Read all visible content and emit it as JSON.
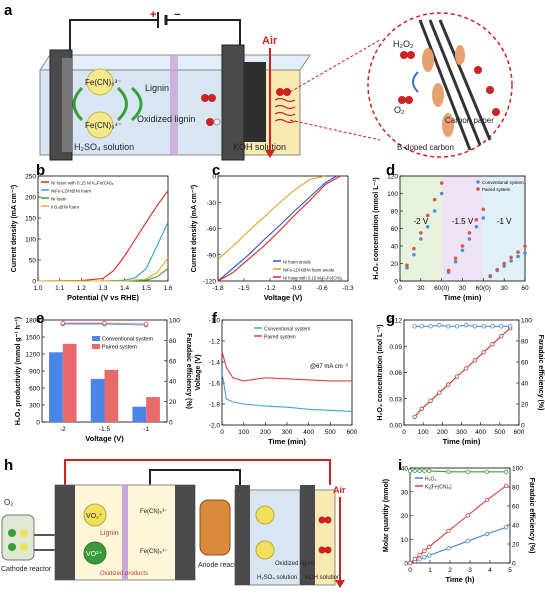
{
  "panel_labels": [
    "a",
    "b",
    "c",
    "d",
    "e",
    "f",
    "g",
    "h",
    "i"
  ],
  "panel_a": {
    "plus_sign": "+",
    "minus_sign": "−",
    "air_label": "Air",
    "cation_top": "Fe(CN)₆³⁻",
    "cation_bottom": "Fe(CN)₆⁴⁻",
    "lignin": "Lignin",
    "oxidized_lignin": "Oxidized lignin",
    "h2so4_label": "H₂SO₄ solution",
    "koh_label": "KOH solution",
    "zoom_h2o2": "H₂O₂",
    "zoom_o2": "O₂",
    "zoom_carbon_paper": "Carbon paper",
    "zoom_bdoped": "B-doped carbon"
  },
  "panel_h": {
    "o2_label": "O₂",
    "cathode_reactor": "Cathode reactor",
    "vo2_top": "VO₂⁺",
    "vo2_bottom": "VO²⁺",
    "fecn_top": "Fe(CN)₆³⁻",
    "fecn_bottom": "Fe(CN)₆⁴⁻",
    "lignin": "Lignin",
    "oxidized_products": "Oxidized products",
    "anode_reactor": "Anode reactor",
    "air_label": "Air",
    "h2so4_label": "H₂SO₄ solution",
    "koh_label": "KOH solution",
    "oxidized_lignin": "Oxidized lignin",
    "plus_sign": "+",
    "minus_sign": "−"
  },
  "chart_data": [
    {
      "panel": "b",
      "type": "line",
      "xlabel": "Potential (V vs RHE)",
      "ylabel": "Current density (mA cm⁻²)",
      "xlim": [
        1.0,
        1.6
      ],
      "ylim": [
        0,
        250
      ],
      "xticks": [
        "1.0",
        "1.1",
        "1.2",
        "1.3",
        "1.4",
        "1.5",
        "1.6"
      ],
      "yticks": [
        "0",
        "50",
        "100",
        "150",
        "200",
        "250"
      ],
      "legend_position": "top-left",
      "series": [
        {
          "name": "Ni foam with 0.15 M K₄Fe(CN)₆",
          "color": "#d62728",
          "x": [
            1.0,
            1.2,
            1.3,
            1.35,
            1.4,
            1.45,
            1.5,
            1.55,
            1.6
          ],
          "y": [
            0,
            1,
            6,
            25,
            60,
            100,
            140,
            180,
            215
          ]
        },
        {
          "name": "NiFe-LDH@Ni foam",
          "color": "#2ca0c9",
          "x": [
            1.0,
            1.3,
            1.4,
            1.45,
            1.5,
            1.55,
            1.6
          ],
          "y": [
            0,
            0,
            2,
            8,
            30,
            85,
            140
          ]
        },
        {
          "name": "Ni foam",
          "color": "#3a9e3a",
          "x": [
            1.0,
            1.4,
            1.5,
            1.55,
            1.6
          ],
          "y": [
            0,
            0,
            2,
            10,
            30
          ]
        },
        {
          "name": "IrO₂@Ni foam",
          "color": "#e0b020",
          "x": [
            1.0,
            1.4,
            1.5,
            1.55,
            1.6
          ],
          "y": [
            0,
            0,
            5,
            20,
            55
          ]
        }
      ]
    },
    {
      "panel": "c",
      "type": "line",
      "xlabel": "Voltage (V)",
      "ylabel": "Current density (mA cm⁻²)",
      "xlim": [
        -1.9,
        -0.2
      ],
      "ylim": [
        -120,
        0
      ],
      "xticks": [
        "-1.8",
        "-1.5",
        "-1.2",
        "-0.9",
        "-0.6",
        "-0.3"
      ],
      "yticks": [
        "-120",
        "-90",
        "-60",
        "-30",
        "0"
      ],
      "legend_position": "bottom-right",
      "series": [
        {
          "name": "Ni foam anode",
          "color": "#3050c8",
          "x": [
            -1.9,
            -1.7,
            -1.5,
            -1.3,
            -1.1,
            -0.9,
            -0.7,
            -0.5,
            -0.35
          ],
          "y": [
            -120,
            -105,
            -90,
            -73,
            -57,
            -40,
            -24,
            -8,
            0
          ]
        },
        {
          "name": "NiFe-LDH@Ni foam anode",
          "color": "#e0a020",
          "x": [
            -1.9,
            -1.7,
            -1.5,
            -1.3,
            -1.1,
            -0.9,
            -0.7,
            -0.5
          ],
          "y": [
            -95,
            -80,
            -63,
            -47,
            -31,
            -16,
            -4,
            0
          ]
        },
        {
          "name": "Ni foam with 0.15 M K₄Fe(CN)₆",
          "color": "#d62728",
          "x": [
            -1.9,
            -1.7,
            -1.5,
            -1.3,
            -1.1,
            -0.9,
            -0.7,
            -0.5,
            -0.3
          ],
          "y": [
            -120,
            -110,
            -95,
            -80,
            -63,
            -45,
            -28,
            -10,
            0
          ]
        }
      ]
    },
    {
      "panel": "d",
      "type": "scatter",
      "xlabel": "Time (min)",
      "ylabel": "H₂O₂ concentration (mmol L⁻¹)",
      "xlim": [
        0,
        180
      ],
      "ylim": [
        0,
        120
      ],
      "xticks": [
        "0",
        "30",
        "60(0)",
        "30",
        "60(0)",
        "30",
        "60"
      ],
      "yticks": [
        "0",
        "20",
        "40",
        "60",
        "80",
        "100",
        "120"
      ],
      "region_labels": [
        "-2 V",
        "-1.5 V",
        "-1 V"
      ],
      "legend_position": "top-right",
      "series": [
        {
          "name": "Conventional system",
          "color": "#4a90d9",
          "x": [
            10,
            20,
            30,
            40,
            50,
            60,
            70,
            80,
            90,
            100,
            110,
            120,
            130,
            140,
            150,
            160,
            170,
            180
          ],
          "y": [
            15,
            30,
            48,
            62,
            80,
            100,
            10,
            22,
            35,
            48,
            62,
            72,
            5,
            12,
            17,
            23,
            28,
            32
          ]
        },
        {
          "name": "Paired system",
          "color": "#e05050",
          "x": [
            10,
            20,
            30,
            40,
            50,
            60,
            70,
            80,
            90,
            100,
            110,
            120,
            130,
            140,
            150,
            160,
            170,
            180
          ],
          "y": [
            18,
            37,
            55,
            75,
            93,
            112,
            12,
            26,
            40,
            55,
            70,
            82,
            6,
            13,
            20,
            27,
            33,
            40
          ]
        }
      ]
    },
    {
      "panel": "e",
      "type": "bar",
      "xlabel": "Voltage (V)",
      "ylabel": "H₂O₂ productivity (mmol g⁻¹ h⁻¹)",
      "ylabel2": "Faradaic efficiency (%)",
      "categories": [
        "-2",
        "-1.5",
        "-1"
      ],
      "ylim": [
        0,
        1800
      ],
      "ylim2": [
        0,
        100
      ],
      "yticks": [
        "0",
        "300",
        "600",
        "900",
        "1200",
        "1500",
        "1800"
      ],
      "yticks2": [
        "0",
        "20",
        "40",
        "60",
        "80",
        "100"
      ],
      "legend_position": "top-right",
      "series": [
        {
          "name": "Conventional system",
          "color": "#4a86e8",
          "values": [
            1230,
            760,
            270
          ]
        },
        {
          "name": "Paired system",
          "color": "#e86a6a",
          "values": [
            1380,
            920,
            440
          ]
        }
      ],
      "fe_series": [
        {
          "name": "Conventional system FE",
          "color": "#4a86e8",
          "values": [
            96,
            96,
            95
          ]
        },
        {
          "name": "Paired system FE",
          "color": "#e86a6a",
          "values": [
            97,
            97,
            96
          ]
        }
      ]
    },
    {
      "panel": "f",
      "type": "line",
      "xlabel": "Time (min)",
      "ylabel": "Voltage (V)",
      "xlim": [
        0,
        600
      ],
      "ylim": [
        -2.0,
        -1.0
      ],
      "xticks": [
        "0",
        "100",
        "200",
        "300",
        "400",
        "500",
        "600"
      ],
      "yticks": [
        "-2.0",
        "-1.8",
        "-1.6",
        "-1.4",
        "-1.2",
        "-1.0"
      ],
      "annotation": "@67 mA cm⁻²",
      "legend_position": "top-right",
      "series": [
        {
          "name": "Conventional system",
          "color": "#4aa0d8",
          "x": [
            0,
            20,
            50,
            100,
            200,
            300,
            400,
            500,
            600
          ],
          "y": [
            -1.5,
            -1.75,
            -1.78,
            -1.8,
            -1.82,
            -1.83,
            -1.85,
            -1.86,
            -1.87
          ]
        },
        {
          "name": "Paired system",
          "color": "#e04040",
          "x": [
            0,
            20,
            50,
            100,
            200,
            300,
            400,
            500,
            600
          ],
          "y": [
            -1.3,
            -1.45,
            -1.55,
            -1.58,
            -1.55,
            -1.56,
            -1.57,
            -1.58,
            -1.58
          ]
        }
      ]
    },
    {
      "panel": "g",
      "type": "line",
      "xlabel": "Time (min)",
      "ylabel": "H₂O₂ concentration (mol L⁻¹)",
      "ylabel2": "Faradaic efficiency (%)",
      "xlim": [
        0,
        650
      ],
      "ylim": [
        0,
        0.13
      ],
      "ylim2": [
        0,
        100
      ],
      "xticks": [
        "0",
        "100",
        "200",
        "300",
        "400",
        "500",
        "600"
      ],
      "yticks": [
        "0.00",
        "0.03",
        "0.06",
        "0.09",
        "0.12"
      ],
      "yticks2": [
        "0",
        "20",
        "40",
        "60",
        "80",
        "100"
      ],
      "series": [
        {
          "name": "H₂O₂ concentration",
          "color": "#c0392b",
          "x": [
            60,
            100,
            150,
            200,
            250,
            300,
            350,
            400,
            450,
            500,
            550,
            600
          ],
          "y": [
            0.01,
            0.02,
            0.03,
            0.04,
            0.05,
            0.06,
            0.07,
            0.08,
            0.09,
            0.1,
            0.11,
            0.12
          ]
        },
        {
          "name": "Faradaic efficiency",
          "color": "#4a90d9",
          "axis": "right",
          "x": [
            60,
            100,
            150,
            200,
            250,
            300,
            350,
            400,
            450,
            500,
            550,
            600
          ],
          "y": [
            94,
            94,
            94,
            95,
            94,
            94,
            95,
            94,
            94,
            94,
            94,
            94
          ]
        }
      ]
    },
    {
      "panel": "i",
      "type": "line",
      "xlabel": "Time (h)",
      "ylabel": "Molar quantity (mmol)",
      "ylabel2": "Faradaic efficiency (%)",
      "xlim": [
        0,
        5.2
      ],
      "ylim": [
        0,
        40
      ],
      "ylim2": [
        0,
        100
      ],
      "xticks": [
        "0",
        "1",
        "2",
        "3",
        "4",
        "5"
      ],
      "yticks": [
        "0",
        "10",
        "20",
        "30",
        "40"
      ],
      "yticks2": [
        "0",
        "20",
        "40",
        "60",
        "80",
        "100"
      ],
      "legend_position": "top-left",
      "series": [
        {
          "name": "H₂O₂",
          "color": "#4a86c8",
          "x": [
            0,
            0.25,
            0.5,
            0.75,
            1,
            2,
            3,
            4,
            5
          ],
          "y": [
            0,
            0.8,
            1.6,
            2.4,
            3.2,
            6.2,
            9.2,
            12.2,
            15
          ]
        },
        {
          "name": "K₃[Fe(CN)₆]",
          "color": "#d64040",
          "x": [
            0,
            0.25,
            0.5,
            0.75,
            1,
            2,
            3,
            4,
            5
          ],
          "y": [
            0,
            1.7,
            3.4,
            5.1,
            6.8,
            13.5,
            20,
            26.5,
            32.5
          ]
        },
        {
          "name": "Faradaic efficiency",
          "color": "#3aa040",
          "axis": "right",
          "x": [
            0,
            0.25,
            0.5,
            0.75,
            1,
            2,
            3,
            4,
            5
          ],
          "y": [
            97,
            97,
            97,
            97,
            97,
            96,
            96,
            96,
            96
          ]
        }
      ]
    }
  ]
}
